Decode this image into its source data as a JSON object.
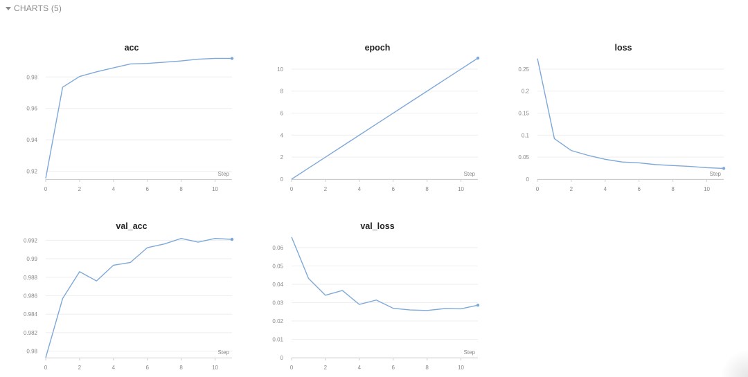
{
  "section": {
    "label": "CHARTS (5)"
  },
  "theme": {
    "line_color": "#7ea8d8",
    "grid_color": "#eeeeee",
    "axis_color": "#cccccc"
  },
  "chart_data": [
    {
      "type": "line",
      "title": "acc",
      "xlabel": "Step",
      "x": [
        0,
        1,
        2,
        3,
        4,
        5,
        6,
        7,
        8,
        9,
        10,
        11
      ],
      "series": [
        {
          "values": [
            0.9155,
            0.9735,
            0.9803,
            0.9833,
            0.9858,
            0.9883,
            0.9886,
            0.9894,
            0.9902,
            0.9913,
            0.9918,
            0.9918
          ]
        }
      ],
      "xlim": [
        0,
        11
      ],
      "ylim": [
        0.915,
        0.992
      ],
      "xticks": [
        0,
        2,
        4,
        6,
        8,
        10
      ],
      "xtick_labels": [
        "0",
        "2",
        "4",
        "6",
        "8",
        "10"
      ],
      "yticks": [
        0.92,
        0.94,
        0.96,
        0.98
      ],
      "ytick_labels": [
        "0.92",
        "0.94",
        "0.96",
        "0.98"
      ],
      "grid": true
    },
    {
      "type": "line",
      "title": "epoch",
      "xlabel": "Step",
      "x": [
        0,
        1,
        2,
        3,
        4,
        5,
        6,
        7,
        8,
        9,
        10,
        11
      ],
      "series": [
        {
          "values": [
            0,
            1,
            2,
            3,
            4,
            5,
            6,
            7,
            8,
            9,
            10,
            11
          ]
        }
      ],
      "xlim": [
        0,
        11
      ],
      "ylim": [
        0,
        11
      ],
      "xticks": [
        0,
        2,
        4,
        6,
        8,
        10
      ],
      "xtick_labels": [
        "0",
        "2",
        "4",
        "6",
        "8",
        "10"
      ],
      "yticks": [
        0,
        2,
        4,
        6,
        8,
        10
      ],
      "ytick_labels": [
        "0",
        "2",
        "4",
        "6",
        "8",
        "10"
      ],
      "grid": true
    },
    {
      "type": "line",
      "title": "loss",
      "xlabel": "Step",
      "x": [
        0,
        1,
        2,
        3,
        4,
        5,
        6,
        7,
        8,
        9,
        10,
        11
      ],
      "series": [
        {
          "values": [
            0.274,
            0.092,
            0.065,
            0.054,
            0.045,
            0.039,
            0.037,
            0.033,
            0.031,
            0.029,
            0.026,
            0.0245
          ]
        }
      ],
      "xlim": [
        0,
        11
      ],
      "ylim": [
        0,
        0.275
      ],
      "xticks": [
        0,
        2,
        4,
        6,
        8,
        10
      ],
      "xtick_labels": [
        "0",
        "2",
        "4",
        "6",
        "8",
        "10"
      ],
      "yticks": [
        0,
        0.05,
        0.1,
        0.15,
        0.2,
        0.25
      ],
      "ytick_labels": [
        "0",
        "0.05",
        "0.1",
        "0.15",
        "0.2",
        "0.25"
      ],
      "grid": true
    },
    {
      "type": "line",
      "title": "val_acc",
      "xlabel": "Step",
      "x": [
        0,
        1,
        2,
        3,
        4,
        5,
        6,
        7,
        8,
        9,
        10,
        11
      ],
      "series": [
        {
          "values": [
            0.9793,
            0.9857,
            0.9886,
            0.9876,
            0.9893,
            0.9896,
            0.9912,
            0.9916,
            0.9922,
            0.9918,
            0.9922,
            0.9921
          ]
        }
      ],
      "xlim": [
        0,
        11
      ],
      "ylim": [
        0.9793,
        0.9924
      ],
      "xticks": [
        0,
        2,
        4,
        6,
        8,
        10
      ],
      "xtick_labels": [
        "0",
        "2",
        "4",
        "6",
        "8",
        "10"
      ],
      "yticks": [
        0.98,
        0.982,
        0.984,
        0.986,
        0.988,
        0.99,
        0.992
      ],
      "ytick_labels": [
        "0.98",
        "0.982",
        "0.984",
        "0.986",
        "0.988",
        "0.99",
        "0.992"
      ],
      "grid": true
    },
    {
      "type": "line",
      "title": "val_loss",
      "xlabel": "Step",
      "x": [
        0,
        1,
        2,
        3,
        4,
        5,
        6,
        7,
        8,
        9,
        10,
        11
      ],
      "series": [
        {
          "values": [
            0.0657,
            0.0432,
            0.034,
            0.0366,
            0.029,
            0.0314,
            0.0269,
            0.026,
            0.0257,
            0.0267,
            0.0266,
            0.0286
          ]
        }
      ],
      "xlim": [
        0,
        11
      ],
      "ylim": [
        0,
        0.066
      ],
      "xticks": [
        0,
        2,
        4,
        6,
        8,
        10
      ],
      "xtick_labels": [
        "0",
        "2",
        "4",
        "6",
        "8",
        "10"
      ],
      "yticks": [
        0,
        0.01,
        0.02,
        0.03,
        0.04,
        0.05,
        0.06
      ],
      "ytick_labels": [
        "0",
        "0.01",
        "0.02",
        "0.03",
        "0.04",
        "0.05",
        "0.06"
      ],
      "grid": true
    }
  ]
}
